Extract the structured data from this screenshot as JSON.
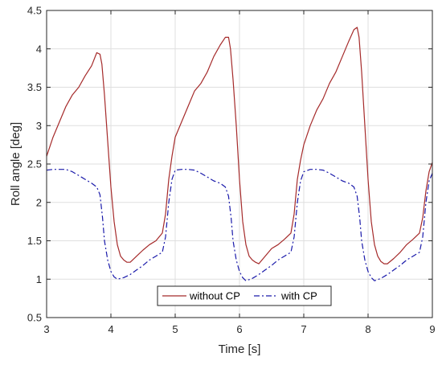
{
  "chart_data": {
    "type": "line",
    "title": "",
    "xlabel": "Time [s]",
    "ylabel": "Roll angle [deg]",
    "xlim": [
      3,
      9
    ],
    "ylim": [
      0.5,
      4.5
    ],
    "xticks": [
      3,
      4,
      5,
      6,
      7,
      8,
      9
    ],
    "yticks": [
      0.5,
      1,
      1.5,
      2,
      2.5,
      3,
      3.5,
      4,
      4.5
    ],
    "xtick_labels": [
      "3",
      "4",
      "5",
      "6",
      "7",
      "8",
      "9"
    ],
    "ytick_labels": [
      "0.5",
      "1",
      "1.5",
      "2",
      "2.5",
      "3",
      "3.5",
      "4",
      "4.5"
    ],
    "grid": true,
    "legend_position": "bottom-center",
    "series": [
      {
        "name": "without CP",
        "color": "#a52a2a",
        "style": "solid",
        "x": [
          3.0,
          3.1,
          3.2,
          3.3,
          3.4,
          3.5,
          3.6,
          3.7,
          3.78,
          3.83,
          3.86,
          3.9,
          3.95,
          4.0,
          4.05,
          4.1,
          4.15,
          4.2,
          4.25,
          4.3,
          4.4,
          4.5,
          4.6,
          4.7,
          4.8,
          4.85,
          4.9,
          4.95,
          5.0,
          5.1,
          5.2,
          5.3,
          5.4,
          5.5,
          5.6,
          5.7,
          5.78,
          5.83,
          5.86,
          5.9,
          5.95,
          6.0,
          6.05,
          6.1,
          6.15,
          6.2,
          6.25,
          6.3,
          6.4,
          6.5,
          6.6,
          6.7,
          6.8,
          6.85,
          6.9,
          6.95,
          7.0,
          7.1,
          7.2,
          7.3,
          7.4,
          7.5,
          7.6,
          7.7,
          7.78,
          7.83,
          7.86,
          7.9,
          7.95,
          8.0,
          8.05,
          8.1,
          8.15,
          8.2,
          8.25,
          8.3,
          8.4,
          8.5,
          8.6,
          8.7,
          8.8,
          8.85,
          8.9,
          8.95,
          9.0
        ],
        "y": [
          2.6,
          2.85,
          3.05,
          3.25,
          3.4,
          3.5,
          3.65,
          3.78,
          3.95,
          3.93,
          3.8,
          3.4,
          2.8,
          2.2,
          1.75,
          1.45,
          1.3,
          1.25,
          1.22,
          1.22,
          1.3,
          1.38,
          1.45,
          1.5,
          1.6,
          1.85,
          2.3,
          2.6,
          2.85,
          3.05,
          3.25,
          3.45,
          3.55,
          3.7,
          3.9,
          4.05,
          4.15,
          4.15,
          4.0,
          3.6,
          3.0,
          2.3,
          1.75,
          1.45,
          1.3,
          1.25,
          1.22,
          1.2,
          1.3,
          1.4,
          1.45,
          1.52,
          1.6,
          1.85,
          2.3,
          2.55,
          2.75,
          3.0,
          3.2,
          3.35,
          3.55,
          3.7,
          3.9,
          4.1,
          4.25,
          4.28,
          4.15,
          3.7,
          3.0,
          2.3,
          1.75,
          1.45,
          1.3,
          1.23,
          1.2,
          1.2,
          1.27,
          1.35,
          1.45,
          1.52,
          1.6,
          1.8,
          2.15,
          2.4,
          2.52
        ]
      },
      {
        "name": "with CP",
        "color": "#1a1aaa",
        "style": "dashdot",
        "x": [
          3.0,
          3.1,
          3.2,
          3.3,
          3.4,
          3.5,
          3.6,
          3.7,
          3.78,
          3.83,
          3.87,
          3.9,
          3.95,
          4.0,
          4.05,
          4.1,
          4.2,
          4.3,
          4.4,
          4.5,
          4.6,
          4.7,
          4.8,
          4.85,
          4.9,
          4.95,
          5.0,
          5.1,
          5.2,
          5.3,
          5.4,
          5.5,
          5.6,
          5.7,
          5.78,
          5.83,
          5.87,
          5.9,
          5.95,
          6.0,
          6.05,
          6.1,
          6.2,
          6.3,
          6.4,
          6.5,
          6.6,
          6.7,
          6.8,
          6.85,
          6.9,
          6.95,
          7.0,
          7.1,
          7.2,
          7.3,
          7.4,
          7.5,
          7.6,
          7.7,
          7.78,
          7.83,
          7.87,
          7.9,
          7.95,
          8.0,
          8.05,
          8.1,
          8.2,
          8.3,
          8.4,
          8.5,
          8.6,
          8.7,
          8.8,
          8.85,
          8.9,
          8.95,
          9.0
        ],
        "y": [
          2.42,
          2.43,
          2.43,
          2.43,
          2.4,
          2.35,
          2.3,
          2.25,
          2.2,
          2.1,
          1.8,
          1.5,
          1.25,
          1.1,
          1.03,
          1.0,
          1.02,
          1.06,
          1.12,
          1.18,
          1.25,
          1.3,
          1.35,
          1.55,
          2.0,
          2.3,
          2.42,
          2.43,
          2.43,
          2.42,
          2.38,
          2.33,
          2.28,
          2.25,
          2.2,
          2.08,
          1.8,
          1.5,
          1.25,
          1.1,
          1.02,
          0.98,
          1.01,
          1.06,
          1.12,
          1.18,
          1.25,
          1.3,
          1.35,
          1.55,
          2.0,
          2.28,
          2.4,
          2.43,
          2.43,
          2.42,
          2.38,
          2.33,
          2.28,
          2.25,
          2.2,
          2.08,
          1.8,
          1.5,
          1.25,
          1.1,
          1.02,
          0.98,
          1.01,
          1.06,
          1.12,
          1.18,
          1.25,
          1.3,
          1.35,
          1.55,
          2.0,
          2.28,
          2.38
        ]
      }
    ]
  }
}
